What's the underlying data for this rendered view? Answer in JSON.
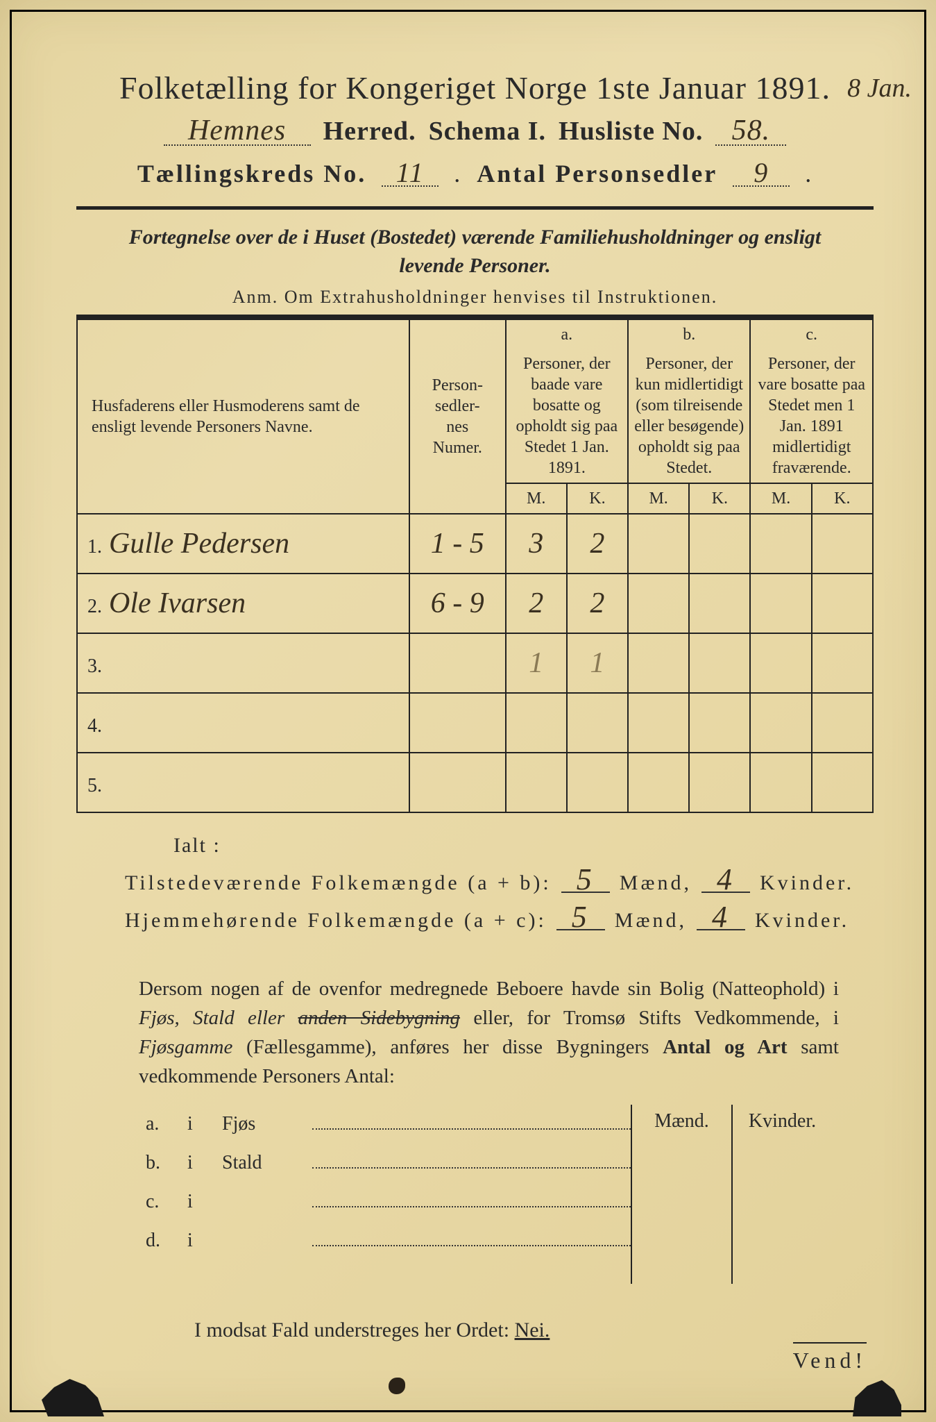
{
  "document": {
    "title": "Folketælling for Kongeriget Norge 1ste Januar 1891.",
    "margin_note": "8 Jan.",
    "herred_value": "Hemnes",
    "herred_label": "Herred.",
    "schema_label": "Schema I.",
    "husliste_label": "Husliste No.",
    "husliste_value": "58.",
    "kreds_label": "Tællingskreds No.",
    "kreds_value": "11",
    "personsedler_label": "Antal Personsedler",
    "personsedler_value": "9",
    "subheading": "Fortegnelse over de i Huset (Bostedet) værende Familiehusholdninger og ensligt levende Personer.",
    "anm": "Anm.  Om Extrahusholdninger henvises til Instruktionen."
  },
  "table": {
    "head_names": "Husfaderens eller Husmoderens samt de ensligt levende Personers Navne.",
    "head_num": "Person-\nsedler-\nnes\nNumer.",
    "col_a_letter": "a.",
    "col_a_text": "Personer, der baade vare bosatte og opholdt sig paa Stedet 1 Jan. 1891.",
    "col_b_letter": "b.",
    "col_b_text": "Personer, der kun midlertidigt (som tilreisende eller besøgende) opholdt sig paa Stedet.",
    "col_c_letter": "c.",
    "col_c_text": "Personer, der vare bosatte paa Stedet men 1 Jan. 1891 midlertidigt fraværende.",
    "m": "M.",
    "k": "K.",
    "rows": [
      {
        "n": "1.",
        "name": "Gulle Pedersen",
        "num": "1 - 5",
        "a_m": "3",
        "a_k": "2",
        "b_m": "",
        "b_k": "",
        "c_m": "",
        "c_k": ""
      },
      {
        "n": "2.",
        "name": "Ole Ivarsen",
        "num": "6 - 9",
        "a_m": "2",
        "a_k": "2",
        "b_m": "",
        "b_k": "",
        "c_m": "",
        "c_k": ""
      },
      {
        "n": "3.",
        "name": "",
        "num": "",
        "a_m": "1",
        "a_k": "1",
        "b_m": "",
        "b_k": "",
        "c_m": "",
        "c_k": "",
        "faint": true
      },
      {
        "n": "4.",
        "name": "",
        "num": "",
        "a_m": "",
        "a_k": "",
        "b_m": "",
        "b_k": "",
        "c_m": "",
        "c_k": ""
      },
      {
        "n": "5.",
        "name": "",
        "num": "",
        "a_m": "",
        "a_k": "",
        "b_m": "",
        "b_k": "",
        "c_m": "",
        "c_k": ""
      }
    ]
  },
  "totals": {
    "ialt": "Ialt :",
    "line1_label": "Tilstedeværende Folkemængde (a + b):",
    "line1_m": "5",
    "line1_k": "4",
    "line2_label": "Hjemmehørende Folkemængde (a + c):",
    "line2_m": "5",
    "line2_k": "4",
    "maend": "Mænd,",
    "kvinder": "Kvinder."
  },
  "paragraph": {
    "text1": "Dersom nogen af de ovenfor medregnede Beboere havde sin Bolig (Natteophold) i ",
    "it1": "Fjøs, Stald eller ",
    "strike": "anden Sidebygning",
    "text2": " eller, for Tromsø Stifts Vedkommende, i ",
    "it2": "Fjøsgamme",
    "text3": " (Fællesgamme), anføres her disse Bygningers ",
    "bold1": "Antal og Art",
    "text4": " samt vedkommende Personers Antal:"
  },
  "buildings": {
    "maend": "Mænd.",
    "kvinder": "Kvinder.",
    "rows": [
      {
        "lead": "a.",
        "i": "i",
        "what": "Fjøs"
      },
      {
        "lead": "b.",
        "i": "i",
        "what": "Stald"
      },
      {
        "lead": "c.",
        "i": "i",
        "what": ""
      },
      {
        "lead": "d.",
        "i": "i",
        "what": ""
      }
    ]
  },
  "nei": {
    "pre": "I modsat Fald understreges her Ordet: ",
    "word": "Nei."
  },
  "vend": "Vend!",
  "colors": {
    "paper": "#e8d9a8",
    "ink": "#2a2a2a",
    "handwriting": "#3a3020",
    "faint_pencil": "#8a7a55",
    "border": "#000000",
    "background": "#1a1a1a"
  }
}
